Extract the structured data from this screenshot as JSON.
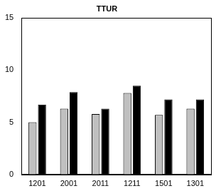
{
  "chart_data": {
    "type": "bar",
    "title": "TTUR",
    "categories": [
      "1201",
      "2001",
      "2011",
      "1211",
      "1501",
      "1301"
    ],
    "series": [
      {
        "color": "#c0c0c0",
        "values": [
          5.0,
          6.3,
          5.8,
          7.8,
          5.7,
          6.3
        ]
      },
      {
        "color": "#000000",
        "values": [
          6.7,
          7.9,
          6.3,
          8.5,
          7.2,
          7.2
        ]
      }
    ],
    "ylim": [
      0,
      15
    ],
    "yticks": [
      0,
      5,
      10,
      15
    ],
    "grid": false
  }
}
